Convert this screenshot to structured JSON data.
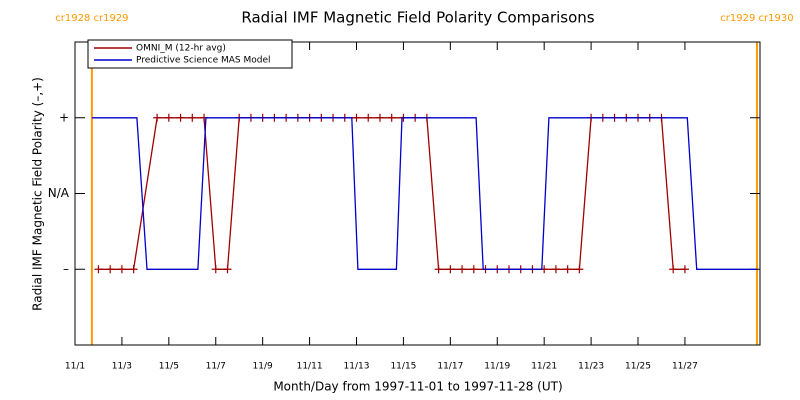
{
  "chart_data": {
    "type": "line",
    "title": "Radial IMF Magnetic Field Polarity Comparisons",
    "x_label": "Month/Day from 1997-11-01 to 1997-11-28 (UT)",
    "y_label": "Radial IMF Magnetic Field Polarity (–,+)",
    "xlim": [
      1,
      30.2
    ],
    "ylim": [
      -2,
      2
    ],
    "xticks": [
      {
        "value": 1,
        "label": "11/1"
      },
      {
        "value": 3,
        "label": "11/3"
      },
      {
        "value": 5,
        "label": "11/5"
      },
      {
        "value": 7,
        "label": "11/7"
      },
      {
        "value": 9,
        "label": "11/9"
      },
      {
        "value": 11,
        "label": "11/11"
      },
      {
        "value": 13,
        "label": "11/13"
      },
      {
        "value": 15,
        "label": "11/15"
      },
      {
        "value": 17,
        "label": "11/17"
      },
      {
        "value": 19,
        "label": "11/19"
      },
      {
        "value": 21,
        "label": "11/21"
      },
      {
        "value": 23,
        "label": "11/23"
      },
      {
        "value": 25,
        "label": "11/25"
      },
      {
        "value": 27,
        "label": "11/27"
      }
    ],
    "yticks": [
      {
        "value": 1,
        "label": "+"
      },
      {
        "value": 0,
        "label": "N/A"
      },
      {
        "value": -1,
        "label": "–"
      }
    ],
    "legend": "upper left",
    "boundaries": [
      {
        "x": 1.72,
        "label": "cr1928 cr1929",
        "color": "#ff9900"
      },
      {
        "x": 30.07,
        "label": "cr1929 cr1930",
        "color": "#ff9900"
      }
    ],
    "series": [
      {
        "name": "OMNI_M (12-hr avg)",
        "color": "#a00000",
        "marker": "plus",
        "x": [
          2.0,
          2.5,
          3.0,
          3.5,
          4.5,
          5.0,
          5.5,
          6.0,
          6.5,
          7.0,
          7.5,
          8.0,
          8.5,
          9.0,
          9.5,
          10.0,
          10.5,
          11.0,
          11.5,
          12.0,
          12.5,
          13.0,
          13.5,
          14.0,
          14.5,
          15.0,
          15.5,
          16.0,
          16.5,
          17.0,
          17.5,
          18.0,
          18.5,
          19.0,
          19.5,
          20.0,
          20.5,
          21.0,
          21.5,
          22.0,
          22.5,
          23.0,
          23.5,
          24.0,
          24.5,
          25.0,
          25.5,
          26.0,
          26.5,
          27.0
        ],
        "values": [
          -1,
          -1,
          -1,
          -1,
          1,
          1,
          1,
          1,
          1,
          -1,
          -1,
          1,
          1,
          1,
          1,
          1,
          1,
          1,
          1,
          1,
          1,
          1,
          1,
          1,
          1,
          1,
          1,
          1,
          -1,
          -1,
          -1,
          -1,
          -1,
          -1,
          -1,
          -1,
          -1,
          -1,
          -1,
          -1,
          -1,
          1,
          1,
          1,
          1,
          1,
          1,
          1,
          -1,
          -1
        ]
      },
      {
        "name": "Predictive Science MAS Model",
        "color": "#0000cc",
        "marker": "none",
        "x": [
          1.72,
          3.64,
          4.07,
          6.24,
          6.58,
          12.8,
          13.06,
          14.7,
          14.94,
          18.1,
          18.4,
          20.9,
          21.2,
          27.1,
          27.5,
          30.07
        ],
        "values": [
          1,
          1,
          -1,
          -1,
          1,
          1,
          -1,
          -1,
          1,
          1,
          -1,
          -1,
          1,
          1,
          -1,
          -1
        ]
      }
    ]
  }
}
